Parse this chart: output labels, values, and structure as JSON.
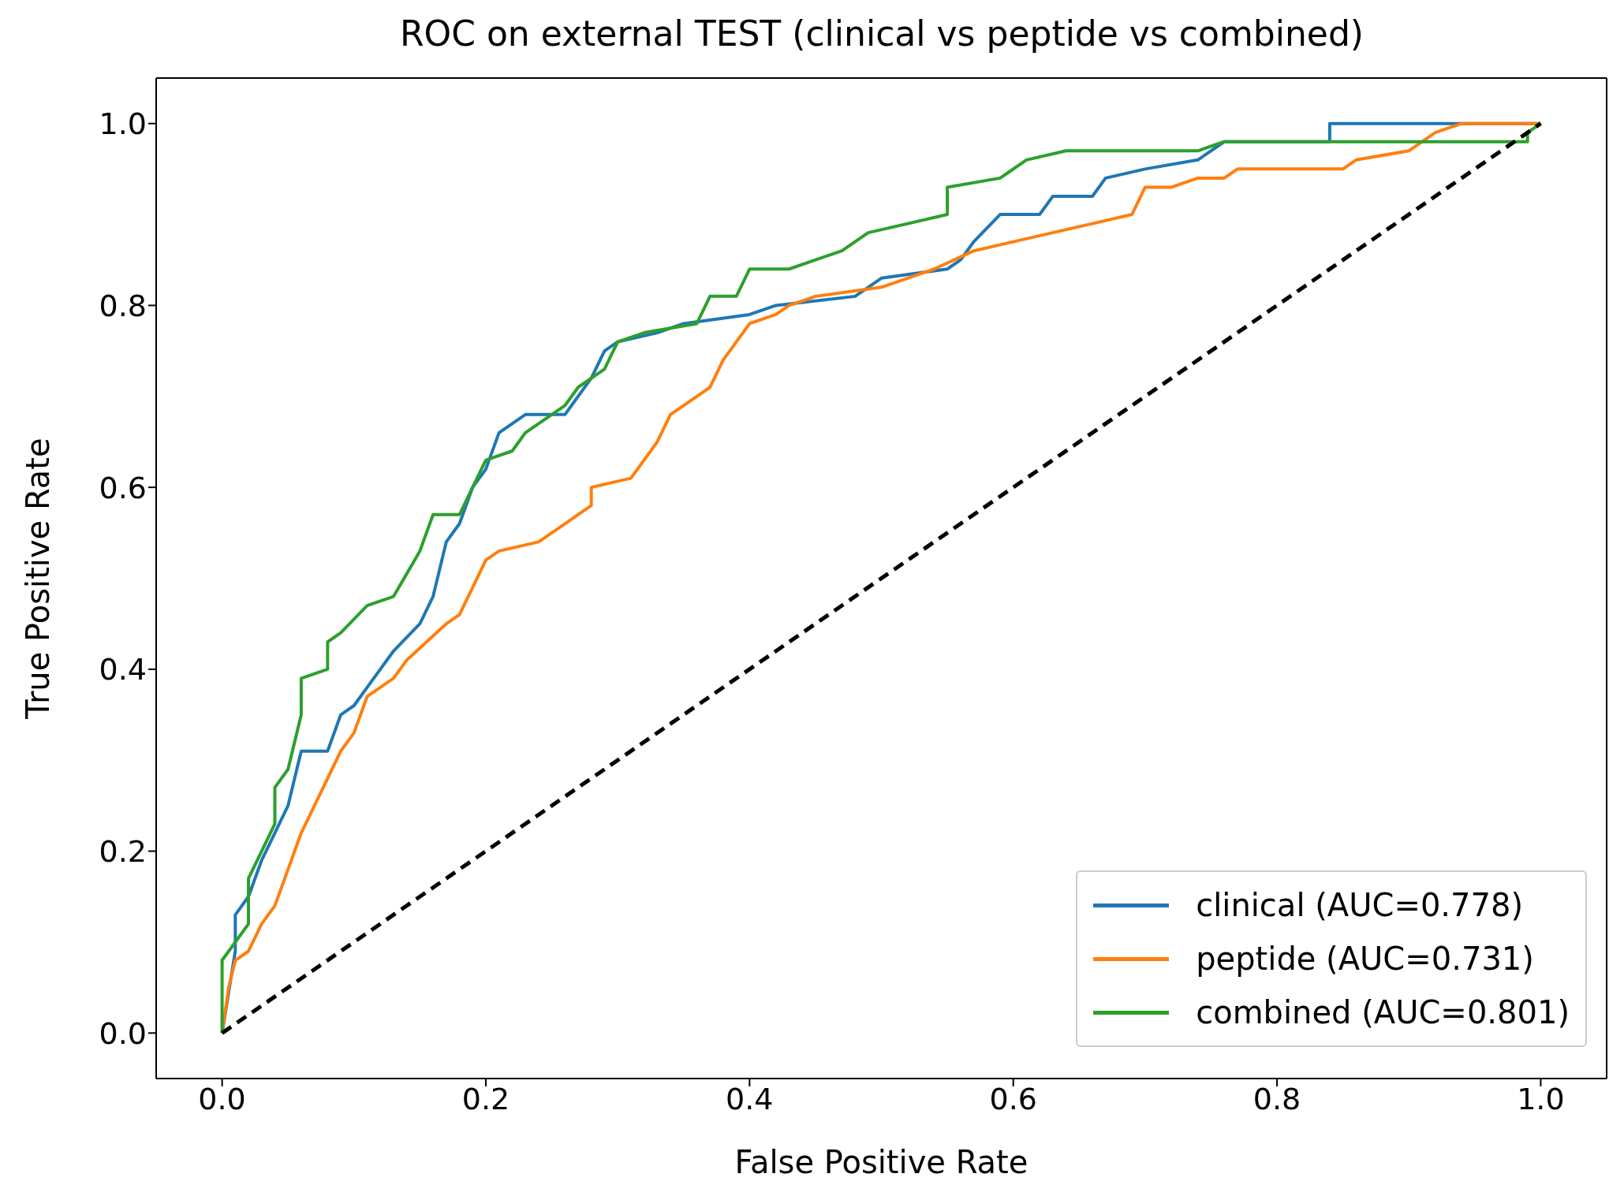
{
  "chart_data": {
    "type": "line",
    "title": "ROC on external TEST (clinical vs peptide vs combined)",
    "xlabel": "False Positive Rate",
    "ylabel": "True Positive Rate",
    "xlim": [
      -0.05,
      1.05
    ],
    "ylim": [
      -0.05,
      1.05
    ],
    "xticks": [
      {
        "value": 0,
        "label": "0.0"
      },
      0.2,
      0.4,
      0.6,
      0.8,
      {
        "value": 1,
        "label": "1.0"
      }
    ],
    "yticks": [
      {
        "value": 0,
        "label": "0.0"
      },
      0.2,
      0.4,
      0.6,
      0.8,
      {
        "value": 1,
        "label": "1.0"
      }
    ],
    "legend": "bottom right",
    "marker": "none",
    "line_style": "solid",
    "series": [
      {
        "name": "clinical (AUC=0.778)",
        "color": "#1f77b4",
        "x": [
          0,
          0.01,
          0.01,
          0.02,
          0.03,
          0.04,
          0.05,
          0.055,
          0.06,
          0.08,
          0.09,
          0.1,
          0.11,
          0.13,
          0.15,
          0.16,
          0.17,
          0.18,
          0.19,
          0.2,
          0.21,
          0.23,
          0.26,
          0.28,
          0.29,
          0.3,
          0.33,
          0.35,
          0.4,
          0.42,
          0.48,
          0.5,
          0.55,
          0.56,
          0.57,
          0.59,
          0.62,
          0.63,
          0.66,
          0.67,
          0.7,
          0.74,
          0.76,
          0.84,
          0.84,
          1
        ],
        "values": [
          0,
          0.09,
          0.13,
          0.15,
          0.19,
          0.22,
          0.25,
          0.28,
          0.31,
          0.31,
          0.35,
          0.36,
          0.38,
          0.42,
          0.45,
          0.48,
          0.54,
          0.56,
          0.6,
          0.62,
          0.66,
          0.68,
          0.68,
          0.72,
          0.75,
          0.76,
          0.77,
          0.78,
          0.79,
          0.8,
          0.81,
          0.83,
          0.84,
          0.85,
          0.87,
          0.9,
          0.9,
          0.92,
          0.92,
          0.94,
          0.95,
          0.96,
          0.98,
          0.98,
          1,
          1
        ]
      },
      {
        "name": "peptide (AUC=0.731)",
        "color": "#ff7f0e",
        "x": [
          0,
          0.005,
          0.01,
          0.02,
          0.03,
          0.04,
          0.05,
          0.06,
          0.07,
          0.08,
          0.09,
          0.1,
          0.11,
          0.13,
          0.14,
          0.17,
          0.18,
          0.19,
          0.2,
          0.21,
          0.24,
          0.26,
          0.28,
          0.28,
          0.31,
          0.33,
          0.34,
          0.36,
          0.37,
          0.38,
          0.39,
          0.4,
          0.42,
          0.43,
          0.45,
          0.5,
          0.52,
          0.54,
          0.57,
          0.6,
          0.63,
          0.66,
          0.69,
          0.7,
          0.72,
          0.74,
          0.76,
          0.77,
          0.85,
          0.86,
          0.9,
          0.92,
          0.94,
          1
        ],
        "values": [
          0,
          0.05,
          0.08,
          0.09,
          0.12,
          0.14,
          0.18,
          0.22,
          0.25,
          0.28,
          0.31,
          0.33,
          0.37,
          0.39,
          0.41,
          0.45,
          0.46,
          0.49,
          0.52,
          0.53,
          0.54,
          0.56,
          0.58,
          0.6,
          0.61,
          0.65,
          0.68,
          0.7,
          0.71,
          0.74,
          0.76,
          0.78,
          0.79,
          0.8,
          0.81,
          0.82,
          0.83,
          0.84,
          0.86,
          0.87,
          0.88,
          0.89,
          0.9,
          0.93,
          0.93,
          0.94,
          0.94,
          0.95,
          0.95,
          0.96,
          0.97,
          0.99,
          1,
          1
        ]
      },
      {
        "name": "combined (AUC=0.801)",
        "color": "#2ca02c",
        "x": [
          0,
          0,
          0.01,
          0.02,
          0.02,
          0.03,
          0.04,
          0.04,
          0.05,
          0.06,
          0.06,
          0.08,
          0.08,
          0.09,
          0.11,
          0.13,
          0.15,
          0.16,
          0.18,
          0.19,
          0.2,
          0.22,
          0.23,
          0.26,
          0.27,
          0.29,
          0.3,
          0.32,
          0.36,
          0.37,
          0.39,
          0.4,
          0.43,
          0.45,
          0.47,
          0.49,
          0.52,
          0.55,
          0.55,
          0.59,
          0.61,
          0.64,
          0.74,
          0.76,
          0.99,
          0.99,
          1
        ],
        "values": [
          0,
          0.08,
          0.1,
          0.12,
          0.17,
          0.2,
          0.23,
          0.27,
          0.29,
          0.35,
          0.39,
          0.4,
          0.43,
          0.44,
          0.47,
          0.48,
          0.53,
          0.57,
          0.57,
          0.6,
          0.63,
          0.64,
          0.66,
          0.69,
          0.71,
          0.73,
          0.76,
          0.77,
          0.78,
          0.81,
          0.81,
          0.84,
          0.84,
          0.85,
          0.86,
          0.88,
          0.89,
          0.9,
          0.93,
          0.94,
          0.96,
          0.97,
          0.97,
          0.98,
          0.98,
          0.99,
          1
        ]
      },
      {
        "color": "#000000",
        "line_style": "dashed",
        "x": [
          0,
          1
        ],
        "values": [
          0,
          1
        ]
      }
    ]
  }
}
